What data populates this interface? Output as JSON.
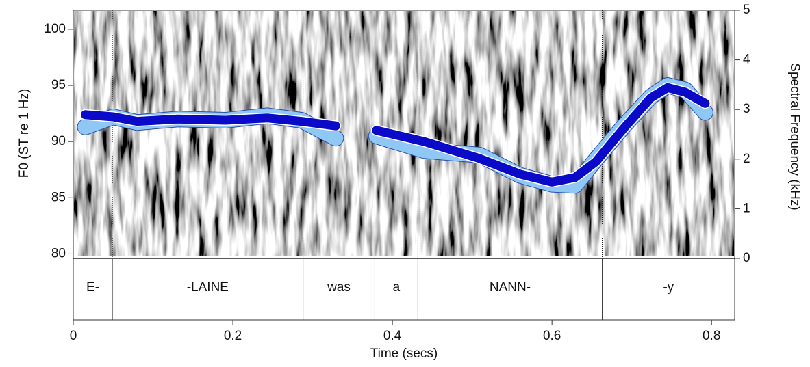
{
  "chart_data": {
    "type": "line",
    "xlabel": "Time (secs)",
    "ylabel": "F0 (ST re 1 Hz)",
    "y2label": "Spectral Frequency (kHz)",
    "x": [
      0.015,
      0.05,
      0.08,
      0.131,
      0.191,
      0.243,
      0.286,
      0.329,
      0.35,
      0.38,
      0.44,
      0.509,
      0.56,
      0.6,
      0.629,
      0.655,
      0.689,
      0.724,
      0.745,
      0.767,
      0.792
    ],
    "series": [
      {
        "color": "#8fc8f5",
        "values": [
          91.3,
          92.2,
          91.7,
          92.0,
          91.9,
          92.3,
          91.9,
          90.3,
          null,
          90.5,
          89.2,
          88.8,
          87.0,
          86.2,
          86.1,
          88.4,
          91.3,
          94.0,
          95.0,
          94.6,
          92.6
        ]
      },
      {
        "color": "#0a0ac8",
        "values": [
          92.4,
          92.2,
          91.8,
          92.0,
          91.9,
          92.1,
          91.8,
          91.4,
          null,
          91.0,
          90.0,
          88.5,
          87.1,
          86.4,
          86.8,
          88.2,
          91.1,
          93.9,
          94.8,
          94.4,
          93.4
        ]
      }
    ],
    "xlim": [
      0,
      0.829
    ],
    "xticks": [
      0,
      0.2,
      0.4,
      0.6,
      0.8
    ],
    "ylim": [
      79.6,
      101.7
    ],
    "yticks": [
      80,
      85,
      90,
      95,
      100
    ],
    "y2lim": [
      0,
      5
    ],
    "y2ticks": [
      0,
      1,
      2,
      3,
      4,
      5
    ],
    "segments": [
      {
        "label": "E-",
        "start": 0,
        "end": 0.049
      },
      {
        "label": "-LAINE",
        "start": 0.049,
        "end": 0.288
      },
      {
        "label": "was",
        "start": 0.288,
        "end": 0.378
      },
      {
        "label": "a",
        "start": 0.378,
        "end": 0.432
      },
      {
        "label": "NANN-",
        "start": 0.432,
        "end": 0.663
      },
      {
        "label": "-y",
        "start": 0.663,
        "end": 0.829
      }
    ]
  }
}
